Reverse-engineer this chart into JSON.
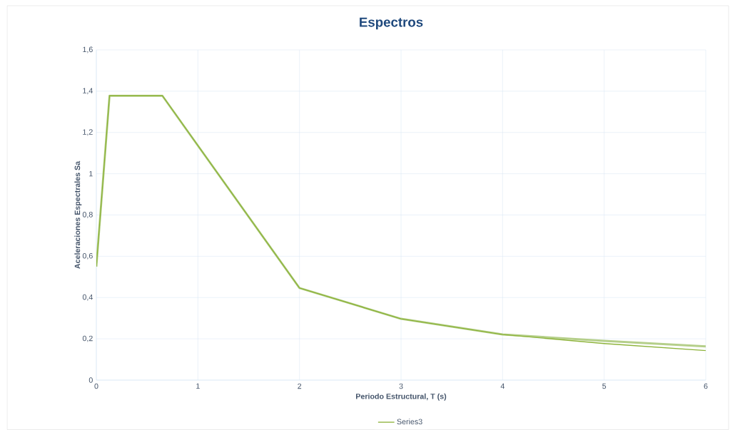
{
  "chart_data": {
    "type": "line",
    "title": "Espectros",
    "xlabel": "Periodo  Estructural, T (s)",
    "ylabel": "Aceleraciones Espectrales Sa",
    "x": [
      0,
      0.13,
      0.65,
      2,
      3,
      4,
      5,
      6
    ],
    "series": [
      {
        "color": "#b5cf8a",
        "values": [
          0.55,
          1.378,
          1.378,
          0.446,
          0.297,
          0.221,
          0.19,
          0.163
        ]
      },
      {
        "name": "Series3",
        "color": "#8db33a",
        "values": [
          0.55,
          1.378,
          1.378,
          0.446,
          0.297,
          0.221,
          0.177,
          0.143
        ]
      }
    ],
    "xlim": [
      0,
      6
    ],
    "xticks": [
      0,
      1,
      2,
      3,
      4,
      5,
      6
    ],
    "ylim": [
      0,
      1.6
    ],
    "yticks": [
      0,
      {
        "value": 0.2,
        "label": "0,2"
      },
      {
        "value": 0.4,
        "label": "0,4"
      },
      {
        "value": 0.6,
        "label": "0,6"
      },
      {
        "value": 0.8,
        "label": "0,8"
      },
      1,
      {
        "value": 1.2,
        "label": "1,2"
      },
      {
        "value": 1.4,
        "label": "1,4"
      },
      {
        "value": 1.6,
        "label": "1,6"
      }
    ],
    "grid": true,
    "legend": "bottom",
    "marker": "none",
    "line_style": "solid"
  }
}
